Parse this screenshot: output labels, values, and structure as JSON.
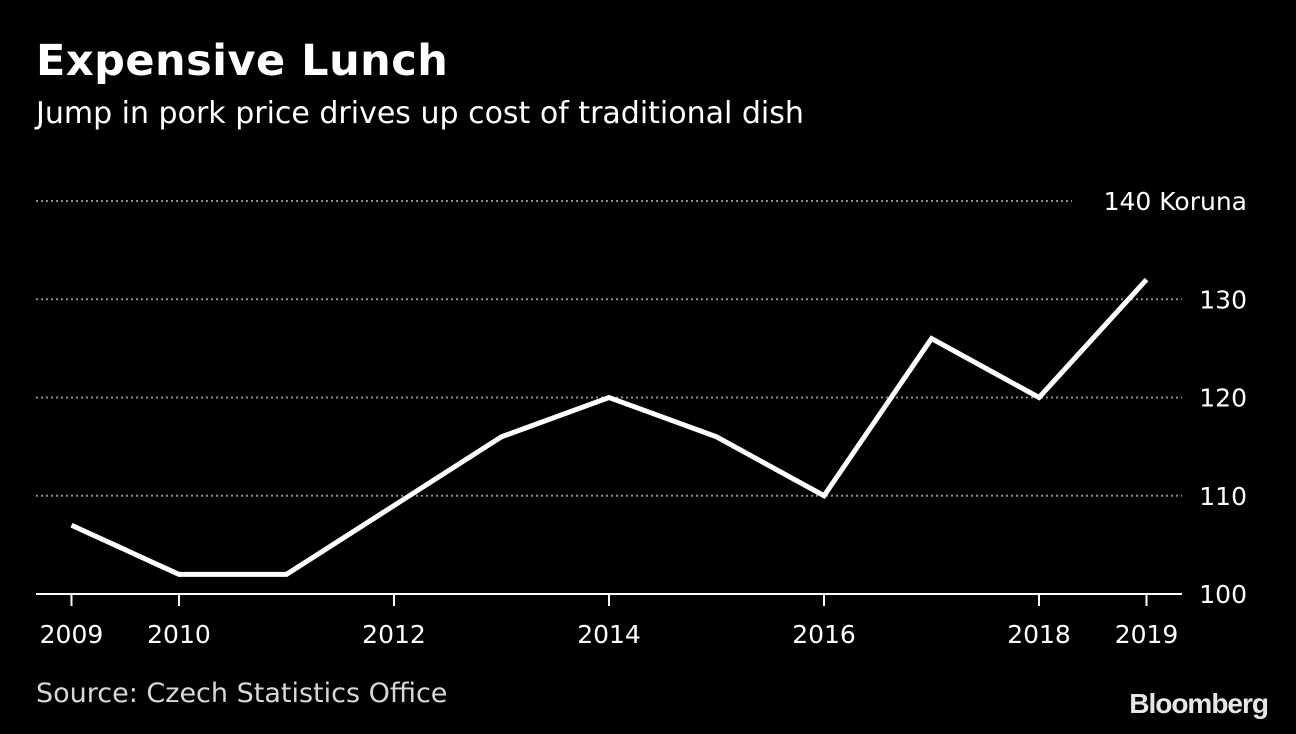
{
  "header": {
    "title": "Expensive Lunch",
    "subtitle": "Jump in pork price drives up cost of traditional dish"
  },
  "footer": {
    "source": "Source: Czech Statistics Office",
    "brand": "Bloomberg"
  },
  "colors": {
    "background": "#000000",
    "line": "#ffffff",
    "grid": "#8c8c8c",
    "text": "#ffffff"
  },
  "chart_data": {
    "type": "line",
    "title": "Expensive Lunch",
    "subtitle": "Jump in pork price drives up cost of traditional dish",
    "ylabel": "Koruna",
    "top_tick_label": "140 Koruna",
    "x": [
      2009,
      2010,
      2011,
      2012,
      2013,
      2014,
      2015,
      2016,
      2017,
      2018,
      2019
    ],
    "x_tick_labels": [
      "2009",
      "2010",
      "2012",
      "2014",
      "2016",
      "2018",
      "2019"
    ],
    "y_ticks": [
      100,
      110,
      120,
      130,
      140
    ],
    "ylim": [
      100,
      140
    ],
    "xlim": [
      2008.67,
      2019.33
    ],
    "grid": "horizontal dotted",
    "series": [
      {
        "values": [
          107,
          102,
          102,
          109,
          116,
          120,
          116,
          110,
          126,
          120,
          132
        ]
      }
    ]
  }
}
